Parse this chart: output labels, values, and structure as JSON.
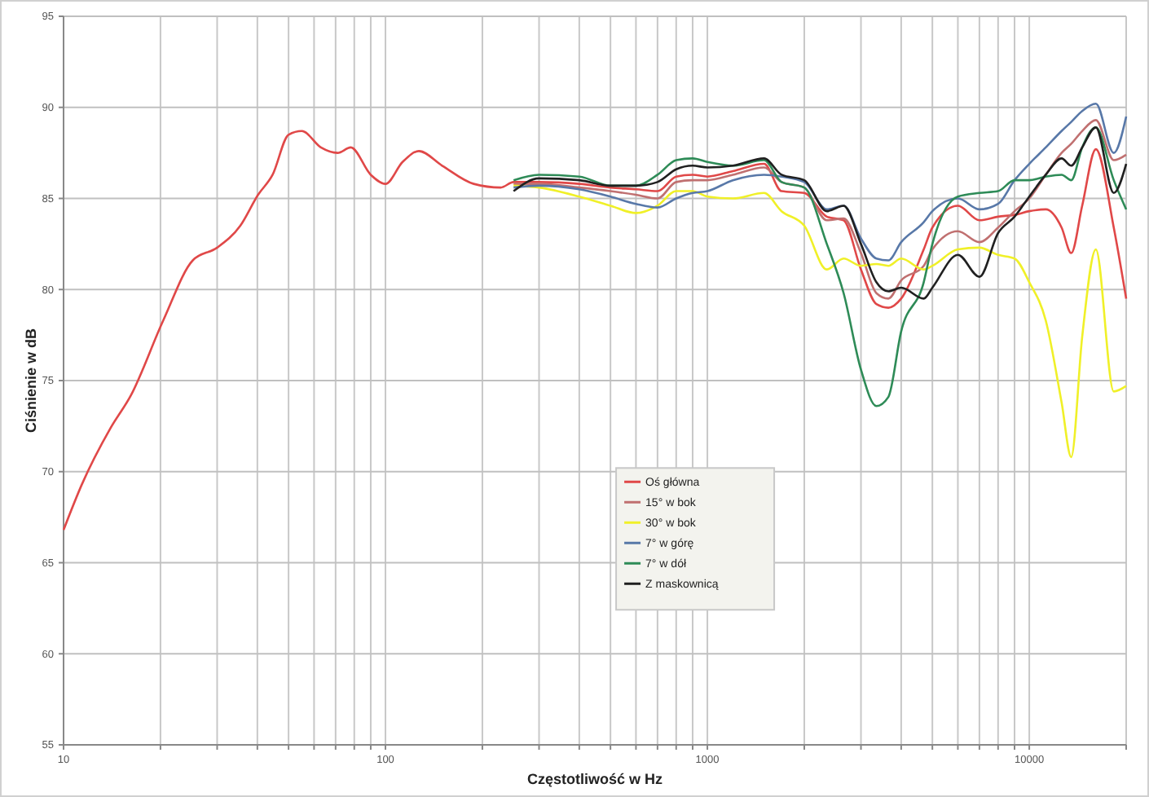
{
  "chart_data": {
    "type": "line",
    "xlabel": "Częstotliwość w Hz",
    "ylabel": "Ciśnienie w dB",
    "log": "x",
    "grid": true,
    "legend": "bottom",
    "line_style": "solid",
    "marker": "none",
    "xlim": [
      10,
      20000
    ],
    "ylim": [
      55,
      95
    ],
    "xticks": [
      10,
      {
        "value": 20,
        "label": null
      },
      {
        "value": 30,
        "label": null
      },
      {
        "value": 40,
        "label": null
      },
      {
        "value": 50,
        "label": null
      },
      {
        "value": 60,
        "label": null
      },
      {
        "value": 70,
        "label": null
      },
      {
        "value": 80,
        "label": null
      },
      {
        "value": 90,
        "label": null
      },
      100,
      {
        "value": 200,
        "label": null
      },
      {
        "value": 300,
        "label": null
      },
      {
        "value": 400,
        "label": null
      },
      {
        "value": 500,
        "label": null
      },
      {
        "value": 600,
        "label": null
      },
      {
        "value": 700,
        "label": null
      },
      {
        "value": 800,
        "label": null
      },
      {
        "value": 900,
        "label": null
      },
      1000,
      {
        "value": 2000,
        "label": null
      },
      {
        "value": 3000,
        "label": null
      },
      {
        "value": 4000,
        "label": null
      },
      {
        "value": 5000,
        "label": null
      },
      {
        "value": 6000,
        "label": null
      },
      {
        "value": 7000,
        "label": null
      },
      {
        "value": 8000,
        "label": null
      },
      {
        "value": 9000,
        "label": null
      },
      10000,
      {
        "value": 20000,
        "label": null
      }
    ],
    "yticks": [
      55,
      60,
      65,
      70,
      75,
      80,
      85,
      90,
      95
    ],
    "x": [
      250,
      300,
      400,
      500,
      600,
      700,
      800,
      900,
      1000,
      1200,
      1500,
      1700,
      2000,
      2350,
      2650,
      3000,
      3350,
      3650,
      4000,
      4700,
      5000,
      6000,
      7000,
      8000,
      9000,
      10000,
      11250,
      12600,
      13500,
      14600,
      16100,
      18300,
      20000
    ],
    "series": [
      {
        "name": "Oś główna",
        "color": "#e04848",
        "x": [
          10,
          11.4,
          14,
          16.2,
          20.4,
          25.2,
          30,
          35.4,
          40.2,
          44.6,
          50,
          55,
          63,
          71,
          78,
          90,
          100,
          113,
          127,
          150,
          188,
          228,
          250,
          300,
          400,
          500,
          600,
          700,
          800,
          900,
          1000,
          1200,
          1500,
          1700,
          2000,
          2350,
          2650,
          3000,
          3350,
          3650,
          4000,
          4700,
          5000,
          6000,
          7000,
          8000,
          9000,
          10000,
          11250,
          12600,
          13500,
          14600,
          16100,
          18300,
          20000
        ],
        "values": [
          66.8,
          69.3,
          72.4,
          74.2,
          78.3,
          81.6,
          82.3,
          83.5,
          85.2,
          86.3,
          88.5,
          88.7,
          87.8,
          87.5,
          87.8,
          86.3,
          85.8,
          87.0,
          87.6,
          86.8,
          85.8,
          85.6,
          85.9,
          85.9,
          85.8,
          85.6,
          85.5,
          85.4,
          86.2,
          86.3,
          86.2,
          86.5,
          86.9,
          85.4,
          85.3,
          84.0,
          83.8,
          81.1,
          79.2,
          79.0,
          79.5,
          82.2,
          83.4,
          84.6,
          83.8,
          84.0,
          84.1,
          84.3,
          84.4,
          83.4,
          82.0,
          84.6,
          87.7,
          83.4,
          79.5
        ]
      },
      {
        "name": "15° w bok",
        "color": "#c07070",
        "values": [
          85.8,
          85.8,
          85.6,
          85.4,
          85.2,
          85.0,
          85.9,
          86.0,
          86.0,
          86.3,
          86.7,
          85.9,
          85.6,
          83.8,
          83.9,
          82.0,
          79.8,
          79.5,
          80.5,
          81.3,
          82.2,
          83.2,
          82.6,
          83.4,
          84.3,
          85.0,
          86.3,
          87.5,
          88.0,
          88.7,
          89.3,
          87.1,
          87.4
        ]
      },
      {
        "name": "30° w bok",
        "color": "#f0f028",
        "values": [
          85.7,
          85.6,
          85.1,
          84.6,
          84.2,
          84.6,
          85.4,
          85.4,
          85.1,
          85.0,
          85.3,
          84.3,
          83.5,
          81.1,
          81.7,
          81.3,
          81.4,
          81.3,
          81.7,
          81.1,
          81.3,
          82.2,
          82.3,
          81.9,
          81.7,
          80.4,
          78.3,
          73.8,
          70.8,
          77.4,
          82.2,
          74.4,
          74.7
        ]
      },
      {
        "name": "7° w górę",
        "color": "#5878a8",
        "values": [
          85.6,
          85.7,
          85.5,
          85.1,
          84.7,
          84.5,
          85.0,
          85.3,
          85.4,
          86.0,
          86.3,
          86.2,
          85.9,
          84.4,
          84.6,
          82.8,
          81.7,
          81.6,
          82.6,
          83.7,
          84.3,
          85.0,
          84.4,
          84.7,
          86.0,
          86.9,
          87.8,
          88.7,
          89.2,
          89.8,
          90.2,
          87.5,
          89.5
        ]
      },
      {
        "name": "7° w dół",
        "color": "#2e8b57",
        "values": [
          86.0,
          86.3,
          86.2,
          85.7,
          85.7,
          86.3,
          87.1,
          87.2,
          87.0,
          86.8,
          87.1,
          85.9,
          85.6,
          82.5,
          79.8,
          75.6,
          73.6,
          74.1,
          77.7,
          80.4,
          82.5,
          85.1,
          85.3,
          85.4,
          86.0,
          86.0,
          86.2,
          86.3,
          86.0,
          87.8,
          88.9,
          86.0,
          84.4
        ]
      },
      {
        "name": "Z maskownicą",
        "color": "#202020",
        "values": [
          85.4,
          86.1,
          86.0,
          85.7,
          85.7,
          85.9,
          86.6,
          86.8,
          86.7,
          86.8,
          87.2,
          86.3,
          86.0,
          84.3,
          84.6,
          82.5,
          80.4,
          79.9,
          80.1,
          79.5,
          80.1,
          81.9,
          80.7,
          83.1,
          84.0,
          85.1,
          86.3,
          87.2,
          86.8,
          87.8,
          88.9,
          85.3,
          86.9
        ]
      }
    ]
  }
}
